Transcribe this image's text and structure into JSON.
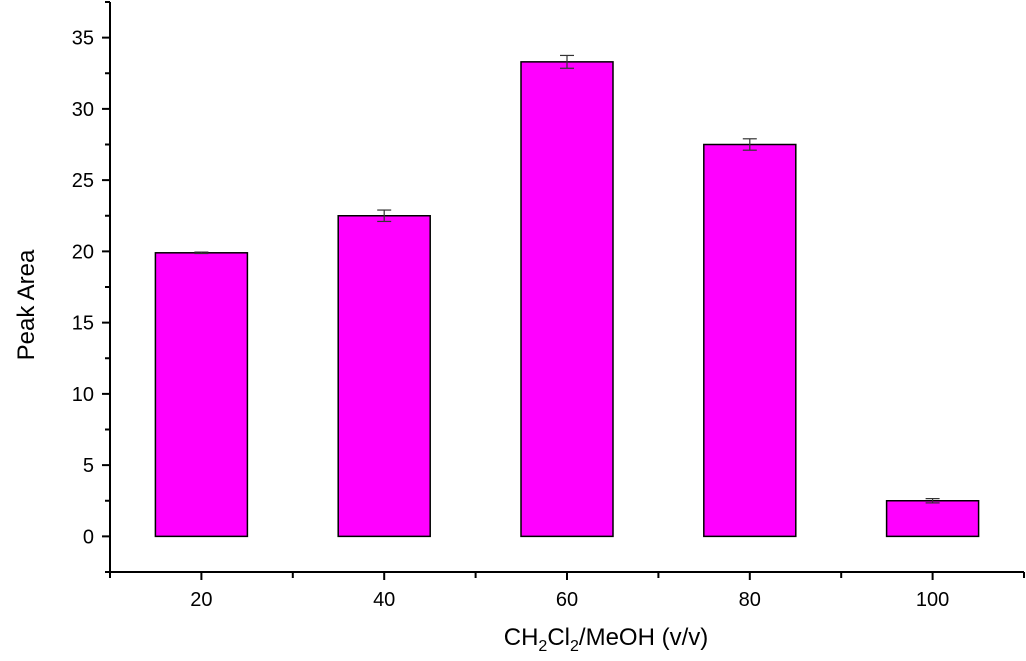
{
  "chart_data": {
    "type": "bar",
    "title": "",
    "xlabel": {
      "main": "CH",
      "sub1": "2",
      "mid": "Cl",
      "sub2": "2",
      "rest": "/MeOH (v/v)"
    },
    "ylabel": "Peak Area",
    "categories": [
      "20",
      "40",
      "60",
      "80",
      "100"
    ],
    "values": [
      19.9,
      22.5,
      33.3,
      27.5,
      2.5
    ],
    "errors": [
      0.05,
      0.4,
      0.45,
      0.4,
      0.15
    ],
    "ylim": [
      -2.5,
      37.5
    ],
    "yticks": [
      0,
      5,
      10,
      15,
      20,
      25,
      30,
      35
    ],
    "yticklabels": [
      "0",
      "5",
      "10",
      "15",
      "20",
      "25",
      "30",
      "35"
    ],
    "grid": false,
    "bar_color": "#ff00ff",
    "edge_color": "#000000"
  }
}
